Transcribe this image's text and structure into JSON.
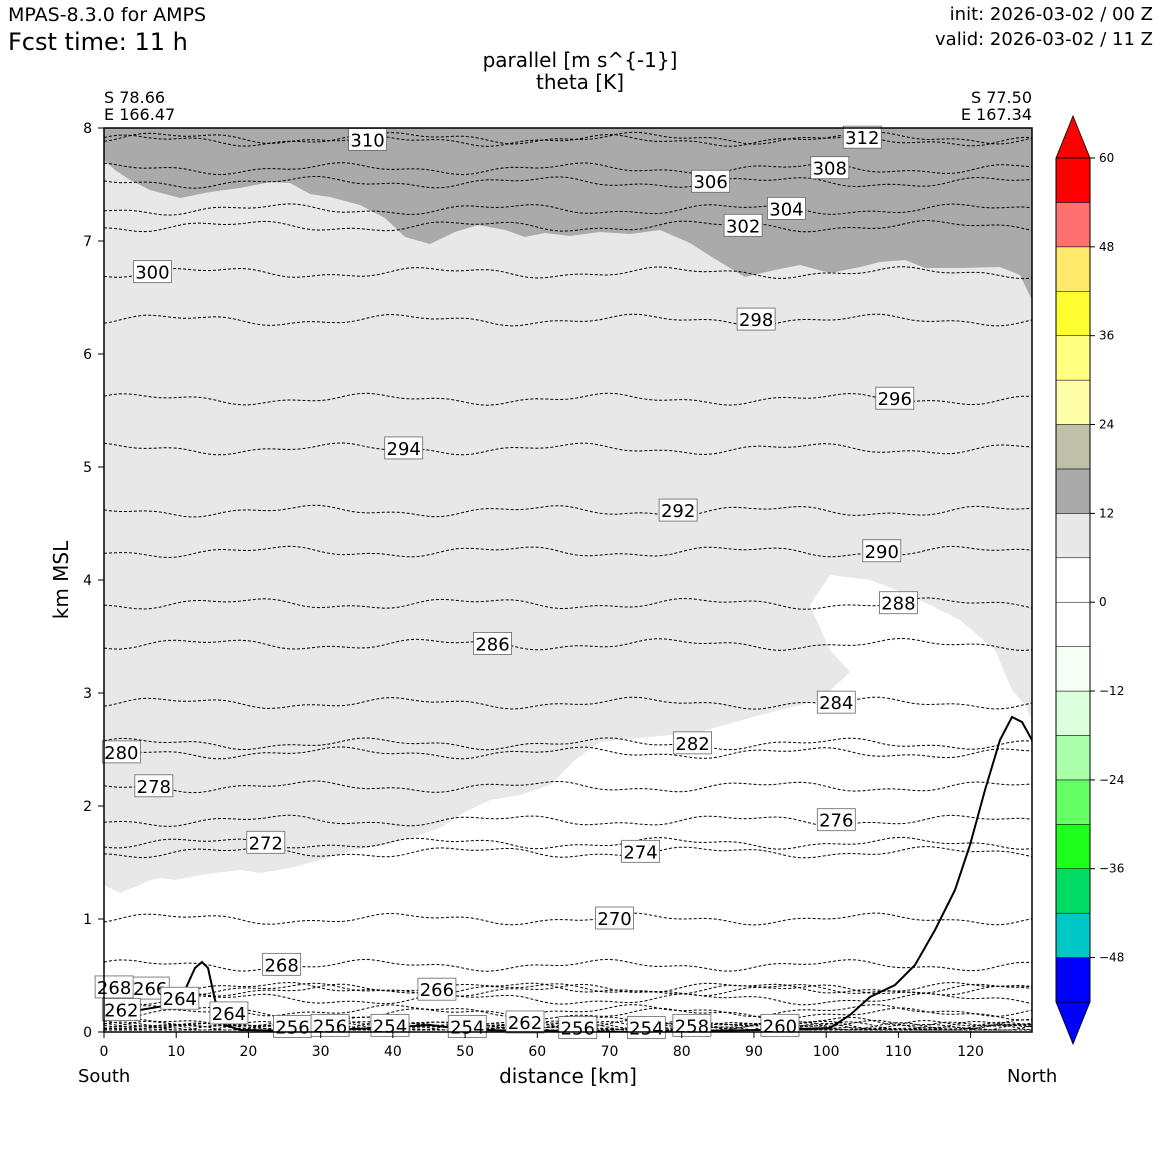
{
  "header": {
    "model": "MPAS-8.3.0 for AMPS",
    "fcst_time": "Fcst time:   11 h",
    "init": "init: 2026-03-02 / 00 Z",
    "valid": "valid: 2026-03-02 / 11 Z"
  },
  "endpoints": {
    "left_lat": "S 78.66",
    "left_lon": "E 166.47",
    "right_lat": "S 77.50",
    "right_lon": "E 167.34",
    "left_label": "South",
    "right_label": "North"
  },
  "chart_data": {
    "type": "cross-section",
    "title": [
      "parallel [m s^{-1}]",
      "theta [K]"
    ],
    "xlabel": "distance [km]",
    "ylabel": "km MSL",
    "xlim": [
      0,
      128.5
    ],
    "ylim": [
      0,
      8
    ],
    "x_ticks": [
      "0",
      "10",
      "20",
      "30",
      "40",
      "50",
      "60",
      "70",
      "80",
      "90",
      "100",
      "110",
      "120"
    ],
    "y_ticks": [
      "0",
      "1",
      "2",
      "3",
      "4",
      "5",
      "6",
      "7",
      "8"
    ],
    "colorbar": {
      "levels": [
        -54,
        -48,
        -42,
        -36,
        -30,
        -24,
        -18,
        -12,
        -6,
        0,
        6,
        12,
        18,
        24,
        30,
        36,
        42,
        48,
        54,
        60
      ],
      "tick_labels": [
        "−48",
        "−36",
        "−24",
        "−12",
        "0",
        "12",
        "24",
        "36",
        "48",
        "60"
      ],
      "tick_values": [
        -48,
        -36,
        -24,
        -12,
        0,
        12,
        24,
        36,
        48,
        60
      ],
      "colors": [
        "#0000ff",
        "#00c8c8",
        "#00dc64",
        "#1eff1e",
        "#64ff64",
        "#aaffaa",
        "#dcffdc",
        "#f5fff5",
        "#ffffff",
        "#ffffff",
        "#e8e8e8",
        "#aaaaaa",
        "#c0c0a8",
        "#ffffaa",
        "#ffff80",
        "#ffff30",
        "#ffe96a",
        "#ff7070",
        "#ff0000"
      ],
      "under_color": "#0000ff",
      "over_color": "#ff0000"
    },
    "theta_contours": [
      {
        "label": "312",
        "lx": 105,
        "ly": 7.91
      },
      {
        "label": "310",
        "lx": 36.5,
        "ly": 7.89
      },
      {
        "label": "308",
        "lx": 100.5,
        "ly": 7.64
      },
      {
        "label": "306",
        "lx": 84,
        "ly": 7.52
      },
      {
        "label": "304",
        "lx": 94.5,
        "ly": 7.28
      },
      {
        "label": "302",
        "lx": 88.5,
        "ly": 7.13
      },
      {
        "label": "300",
        "lx": 6.7,
        "ly": 6.72
      },
      {
        "label": "298",
        "lx": 90.3,
        "ly": 6.3
      },
      {
        "label": "296",
        "lx": 109.5,
        "ly": 5.6
      },
      {
        "label": "294",
        "lx": 41.5,
        "ly": 5.16
      },
      {
        "label": "292",
        "lx": 79.5,
        "ly": 4.61
      },
      {
        "label": "290",
        "lx": 107.7,
        "ly": 4.25
      },
      {
        "label": "288",
        "lx": 110,
        "ly": 3.79
      },
      {
        "label": "286",
        "lx": 53.8,
        "ly": 3.43
      },
      {
        "label": "284",
        "lx": 101.4,
        "ly": 2.91
      },
      {
        "label": "282",
        "lx": 81.5,
        "ly": 2.55
      },
      {
        "label": "280",
        "lx": 2.4,
        "ly": 2.47
      },
      {
        "label": "278",
        "lx": 6.9,
        "ly": 2.17
      },
      {
        "label": "276",
        "lx": 101.4,
        "ly": 1.87
      },
      {
        "label": "274",
        "lx": 74.3,
        "ly": 1.59
      },
      {
        "label": "272",
        "lx": 22.4,
        "ly": 1.67
      },
      {
        "label": "270",
        "lx": 70.7,
        "ly": 1.0
      },
      {
        "label": "268",
        "lx": 24.6,
        "ly": 0.59
      },
      {
        "label": "266",
        "lx": 46.1,
        "ly": 0.37
      },
      {
        "label": "266",
        "lx": 6.4,
        "ly": 0.38
      },
      {
        "label": "268",
        "lx": 1.4,
        "ly": 0.39
      },
      {
        "label": "264",
        "lx": 10.5,
        "ly": 0.29
      },
      {
        "label": "264",
        "lx": 17.3,
        "ly": 0.16
      },
      {
        "label": "262",
        "lx": 2.4,
        "ly": 0.19
      },
      {
        "label": "262",
        "lx": 58.3,
        "ly": 0.08
      },
      {
        "label": "260",
        "lx": 93.6,
        "ly": 0.05
      },
      {
        "label": "258",
        "lx": 81.4,
        "ly": 0.05
      },
      {
        "label": "256",
        "lx": 26.1,
        "ly": 0.04
      },
      {
        "label": "256",
        "lx": 31.3,
        "ly": 0.05
      },
      {
        "label": "256",
        "lx": 65.6,
        "ly": 0.03
      },
      {
        "label": "254",
        "lx": 39.6,
        "ly": 0.05
      },
      {
        "label": "254",
        "lx": 50.3,
        "ly": 0.04
      },
      {
        "label": "254",
        "lx": 75.1,
        "ly": 0.03
      }
    ]
  }
}
